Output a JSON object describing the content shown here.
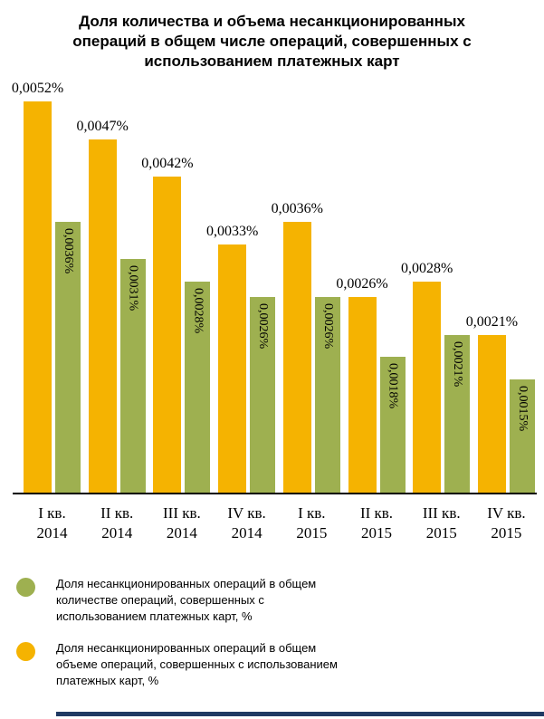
{
  "page": {
    "footer_bar_color": "#1F3A63"
  },
  "chart_data": {
    "type": "bar",
    "title": "Доля количества и объема несанкционированных операций в общем числе операций, совершенных с использованием платежных карт",
    "title_lines": [
      "Доля количества и объема несанкционированных",
      "операций в общем числе операций, совершенных с",
      "использованием платежных карт"
    ],
    "categories": [
      [
        "I кв.",
        "2014"
      ],
      [
        "II кв.",
        "2014"
      ],
      [
        "III кв.",
        "2014"
      ],
      [
        "IV кв.",
        "2014"
      ],
      [
        "I кв.",
        "2015"
      ],
      [
        "II кв.",
        "2015"
      ],
      [
        "III кв.",
        "2015"
      ],
      [
        "IV кв.",
        "2015"
      ]
    ],
    "ylim": [
      0,
      0.0052
    ],
    "grid": false,
    "xlabel": "",
    "ylabel": "",
    "series": [
      {
        "id": "volume-share",
        "name": "Доля несанкционированных операций в общем объеме операций, совершенных с использованием платежных карт, %",
        "color": "#F5B301",
        "values": [
          0.0052,
          0.0047,
          0.0042,
          0.0033,
          0.0036,
          0.0026,
          0.0028,
          0.0021
        ],
        "labels": [
          "0,0052%",
          "0,0047%",
          "0,0042%",
          "0,0033%",
          "0,0036%",
          "0,0026%",
          "0,0028%",
          "0,0021%"
        ],
        "label_position": "above"
      },
      {
        "id": "count-share",
        "name": "Доля несанкционированных операций в общем количестве операций, совершенных с использованием платежных карт, %",
        "color": "#9EB050",
        "values": [
          0.0036,
          0.0031,
          0.0028,
          0.0026,
          0.0026,
          0.0018,
          0.0021,
          0.0015
        ],
        "labels": [
          "0,0036%",
          "0,0031%",
          "0,0028%",
          "0,0026%",
          "0,0026%",
          "0,0018%",
          "0,0021%",
          "0,0015%"
        ],
        "label_position": "inside-vertical"
      }
    ],
    "legend_position": "bottom-left",
    "legend": [
      {
        "icon": "legend-dot-green",
        "color": "#9EB050",
        "lines": [
          "Доля несанкционированных операций в общем",
          "количестве операций, совершенных с",
          "использованием платежных карт, %"
        ]
      },
      {
        "icon": "legend-dot-yellow",
        "color": "#F5B301",
        "lines": [
          "Доля несанкционированных операций в общем",
          "объеме операций, совершенных с использованием",
          "платежных карт, %"
        ]
      }
    ]
  }
}
